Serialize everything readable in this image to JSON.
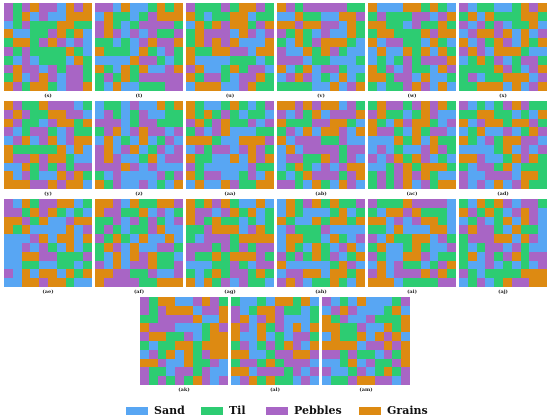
{
  "colors": {
    "sand": "#58A6F3",
    "til": "#2DCC72",
    "pebbles": "#A865C5",
    "grains": "#DD8A12"
  },
  "legend": [
    {
      "key": "sand",
      "label": "Sand"
    },
    {
      "key": "til",
      "label": "Til"
    },
    {
      "key": "pebbles",
      "label": "Pebbles"
    },
    {
      "key": "grains",
      "label": "Grains"
    }
  ],
  "panels": [
    {
      "caption": "(s)"
    },
    {
      "caption": "(t)"
    },
    {
      "caption": "(u)"
    },
    {
      "caption": "(v)"
    },
    {
      "caption": "(w)"
    },
    {
      "caption": "(x)"
    },
    {
      "caption": "(y)"
    },
    {
      "caption": "(z)"
    },
    {
      "caption": "(aa)"
    },
    {
      "caption": "(ab)"
    },
    {
      "caption": "(ac)"
    },
    {
      "caption": "(ad)"
    },
    {
      "caption": "(ae)"
    },
    {
      "caption": "(af)"
    },
    {
      "caption": "(ag)"
    },
    {
      "caption": "(ah)"
    },
    {
      "caption": "(ai)"
    },
    {
      "caption": "(aj)"
    },
    {
      "caption": "(ak)"
    },
    {
      "caption": "(al)"
    },
    {
      "caption": "(am)"
    }
  ]
}
